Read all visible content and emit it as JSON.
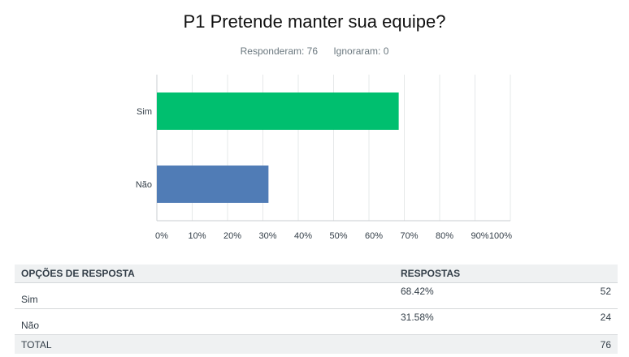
{
  "header": {
    "title": "P1 Pretende manter sua equipe?",
    "answered": "Responderam: 76",
    "skipped": "Ignoraram: 0"
  },
  "chart_data": {
    "type": "bar",
    "orientation": "horizontal",
    "title": "P1 Pretende manter sua equipe?",
    "categories": [
      "Sim",
      "Não"
    ],
    "values": [
      68.42,
      31.58
    ],
    "colors": [
      "#00bf6f",
      "#507cb6"
    ],
    "xlim": [
      0,
      100
    ],
    "x_ticks": [
      "0%",
      "10%",
      "20%",
      "30%",
      "40%",
      "50%",
      "60%",
      "70%",
      "80%",
      "90%",
      "100%"
    ],
    "grid": "vertical",
    "xlabel": "",
    "ylabel": ""
  },
  "table": {
    "headers": [
      "OPÇÕES DE RESPOSTA",
      "RESPOSTAS"
    ],
    "rows": [
      {
        "option": "Sim",
        "percent": "68.42%",
        "count": "52"
      },
      {
        "option": "Não",
        "percent": "31.58%",
        "count": "24"
      }
    ],
    "total_label": "TOTAL",
    "total_count": "76"
  }
}
